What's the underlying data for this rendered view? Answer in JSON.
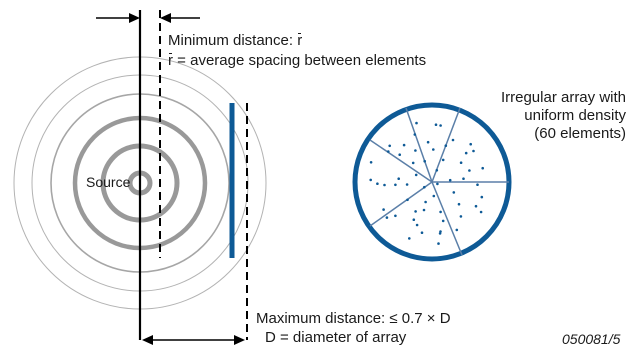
{
  "labels": {
    "min_distance_prefix": "Minimum distance:",
    "min_distance_symbol": "r",
    "avg_symbol": "r",
    "avg_spacing_text": "= average spacing between elements",
    "source": "Source",
    "irregular_array_line1": "Irregular array with",
    "irregular_array_line2": "uniform density",
    "irregular_array_line3": "(60 elements)",
    "max_distance": "Maximum distance: ≤ 0.7 × D",
    "diameter_def": "D = diameter of array",
    "figure_id": "050081/5"
  },
  "colors": {
    "array_blue": "#0e5a96",
    "ring_gray": "#999999",
    "thin_ring_gray": "#aaaaaa",
    "line_black": "#000000",
    "sector_line": "#5b7fa8"
  },
  "array": {
    "element_count": 60
  }
}
